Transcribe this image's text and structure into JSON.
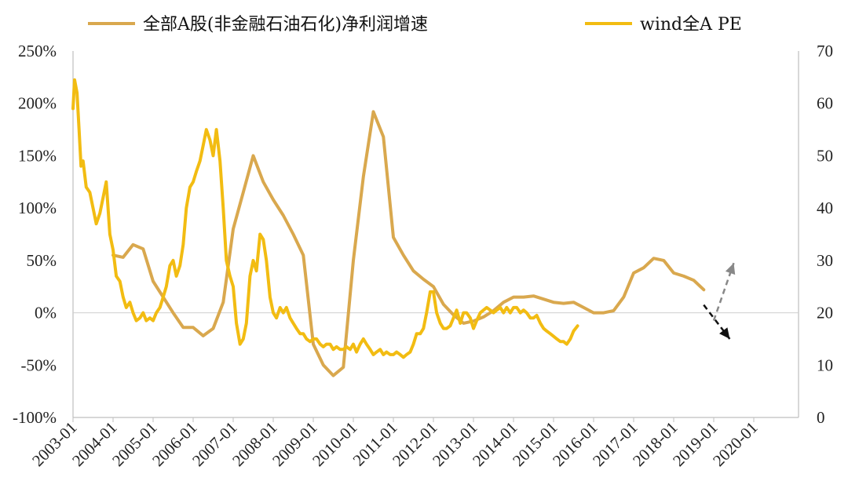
{
  "chart_data": {
    "type": "line",
    "legend": [
      {
        "name": "全部A股(非金融石油石化)净利润增速",
        "color": "#D9A84E"
      },
      {
        "name": "wind全A PE",
        "color": "#F2BC12"
      }
    ],
    "legend_position": "top",
    "grid": false,
    "x_ticks": [
      "2003-01",
      "2004-01",
      "2005-01",
      "2006-01",
      "2007-01",
      "2008-01",
      "2009-01",
      "2010-01",
      "2011-01",
      "2012-01",
      "2013-01",
      "2014-01",
      "2015-01",
      "2016-01",
      "2017-01",
      "2018-01",
      "2019-01",
      "2020-01"
    ],
    "y_left": {
      "min": -100,
      "max": 250,
      "ticks": [
        -100,
        -50,
        0,
        50,
        100,
        150,
        200,
        250
      ],
      "unit": "%"
    },
    "y_right": {
      "min": 0,
      "max": 70,
      "ticks": [
        0,
        10,
        20,
        30,
        40,
        50,
        60,
        70
      ]
    },
    "series": [
      {
        "name": "全部A股(非金融石油石化)净利润增速",
        "axis": "left",
        "color": "#D9A84E",
        "points": [
          [
            2004.0,
            55
          ],
          [
            2004.25,
            53
          ],
          [
            2004.5,
            65
          ],
          [
            2004.75,
            61
          ],
          [
            2005.0,
            30
          ],
          [
            2005.25,
            15
          ],
          [
            2005.5,
            0
          ],
          [
            2005.75,
            -14
          ],
          [
            2006.0,
            -14
          ],
          [
            2006.25,
            -22
          ],
          [
            2006.5,
            -15
          ],
          [
            2006.75,
            10
          ],
          [
            2007.0,
            80
          ],
          [
            2007.25,
            115
          ],
          [
            2007.5,
            150
          ],
          [
            2007.75,
            125
          ],
          [
            2008.0,
            108
          ],
          [
            2008.25,
            93
          ],
          [
            2008.5,
            75
          ],
          [
            2008.75,
            55
          ],
          [
            2009.0,
            -30
          ],
          [
            2009.25,
            -50
          ],
          [
            2009.5,
            -60
          ],
          [
            2009.75,
            -52
          ],
          [
            2010.0,
            50
          ],
          [
            2010.25,
            130
          ],
          [
            2010.5,
            192
          ],
          [
            2010.75,
            168
          ],
          [
            2011.0,
            72
          ],
          [
            2011.25,
            55
          ],
          [
            2011.5,
            40
          ],
          [
            2011.75,
            32
          ],
          [
            2012.0,
            25
          ],
          [
            2012.25,
            8
          ],
          [
            2012.5,
            -2
          ],
          [
            2012.75,
            -10
          ],
          [
            2013.0,
            -8
          ],
          [
            2013.25,
            -4
          ],
          [
            2013.5,
            2
          ],
          [
            2013.75,
            10
          ],
          [
            2014.0,
            15
          ],
          [
            2014.25,
            15
          ],
          [
            2014.5,
            16
          ],
          [
            2014.75,
            13
          ],
          [
            2015.0,
            10
          ],
          [
            2015.25,
            9
          ],
          [
            2015.5,
            10
          ],
          [
            2015.75,
            5
          ],
          [
            2016.0,
            0
          ],
          [
            2016.25,
            0
          ],
          [
            2016.5,
            2
          ],
          [
            2016.75,
            15
          ],
          [
            2017.0,
            38
          ],
          [
            2017.25,
            43
          ],
          [
            2017.5,
            52
          ],
          [
            2017.75,
            50
          ],
          [
            2018.0,
            38
          ],
          [
            2018.25,
            35
          ],
          [
            2018.5,
            31
          ],
          [
            2018.75,
            22
          ]
        ]
      },
      {
        "name": "wind全A PE",
        "axis": "right",
        "color": "#F2BC12",
        "points": [
          [
            2003.0,
            59
          ],
          [
            2003.04,
            64.5
          ],
          [
            2003.1,
            62
          ],
          [
            2003.15,
            55
          ],
          [
            2003.2,
            48
          ],
          [
            2003.25,
            49
          ],
          [
            2003.33,
            44
          ],
          [
            2003.42,
            43
          ],
          [
            2003.5,
            40
          ],
          [
            2003.58,
            37
          ],
          [
            2003.67,
            39
          ],
          [
            2003.75,
            42
          ],
          [
            2003.83,
            45
          ],
          [
            2003.92,
            35
          ],
          [
            2004.0,
            32
          ],
          [
            2004.08,
            27
          ],
          [
            2004.17,
            26
          ],
          [
            2004.25,
            23
          ],
          [
            2004.33,
            21
          ],
          [
            2004.42,
            22
          ],
          [
            2004.5,
            20
          ],
          [
            2004.58,
            18.5
          ],
          [
            2004.67,
            19
          ],
          [
            2004.75,
            20
          ],
          [
            2004.83,
            18.5
          ],
          [
            2004.92,
            19
          ],
          [
            2005.0,
            18.5
          ],
          [
            2005.08,
            20
          ],
          [
            2005.17,
            21
          ],
          [
            2005.25,
            23
          ],
          [
            2005.33,
            25
          ],
          [
            2005.42,
            29
          ],
          [
            2005.5,
            30
          ],
          [
            2005.58,
            27
          ],
          [
            2005.67,
            29
          ],
          [
            2005.75,
            33
          ],
          [
            2005.83,
            40
          ],
          [
            2005.92,
            44
          ],
          [
            2006.0,
            45
          ],
          [
            2006.08,
            47
          ],
          [
            2006.17,
            49
          ],
          [
            2006.25,
            52
          ],
          [
            2006.33,
            55
          ],
          [
            2006.42,
            53
          ],
          [
            2006.5,
            50
          ],
          [
            2006.58,
            55
          ],
          [
            2006.67,
            49
          ],
          [
            2006.75,
            40
          ],
          [
            2006.83,
            30
          ],
          [
            2006.92,
            27
          ],
          [
            2007.0,
            25
          ],
          [
            2007.08,
            18
          ],
          [
            2007.17,
            14
          ],
          [
            2007.25,
            15
          ],
          [
            2007.33,
            18
          ],
          [
            2007.42,
            27
          ],
          [
            2007.5,
            30
          ],
          [
            2007.58,
            28
          ],
          [
            2007.67,
            35
          ],
          [
            2007.75,
            34
          ],
          [
            2007.83,
            30
          ],
          [
            2007.92,
            23
          ],
          [
            2008.0,
            20
          ],
          [
            2008.08,
            19
          ],
          [
            2008.17,
            21
          ],
          [
            2008.25,
            20
          ],
          [
            2008.33,
            21
          ],
          [
            2008.42,
            19
          ],
          [
            2008.5,
            18
          ],
          [
            2008.58,
            17
          ],
          [
            2008.67,
            16
          ],
          [
            2008.75,
            16
          ],
          [
            2008.83,
            15
          ],
          [
            2008.92,
            14.5
          ],
          [
            2009.0,
            15
          ],
          [
            2009.08,
            15
          ],
          [
            2009.17,
            14
          ],
          [
            2009.25,
            13.5
          ],
          [
            2009.33,
            14
          ],
          [
            2009.42,
            14
          ],
          [
            2009.5,
            13
          ],
          [
            2009.58,
            13.5
          ],
          [
            2009.67,
            13
          ],
          [
            2009.75,
            13
          ],
          [
            2009.83,
            13.5
          ],
          [
            2009.92,
            13
          ],
          [
            2010.0,
            14
          ],
          [
            2010.08,
            12.5
          ],
          [
            2010.17,
            14
          ],
          [
            2010.25,
            15
          ],
          [
            2010.33,
            14
          ],
          [
            2010.42,
            13
          ],
          [
            2010.5,
            12
          ],
          [
            2010.58,
            12.5
          ],
          [
            2010.67,
            13
          ],
          [
            2010.75,
            12
          ],
          [
            2010.83,
            12.5
          ],
          [
            2010.92,
            12
          ],
          [
            2011.0,
            12
          ],
          [
            2011.08,
            12.5
          ],
          [
            2011.17,
            12
          ],
          [
            2011.25,
            11.5
          ],
          [
            2011.33,
            12
          ],
          [
            2011.42,
            12.5
          ],
          [
            2011.5,
            14
          ],
          [
            2011.58,
            16
          ],
          [
            2011.67,
            16
          ],
          [
            2011.75,
            17
          ],
          [
            2011.83,
            20
          ],
          [
            2011.92,
            24
          ],
          [
            2012.0,
            24
          ],
          [
            2012.08,
            20
          ],
          [
            2012.17,
            18
          ],
          [
            2012.25,
            17
          ],
          [
            2012.33,
            17
          ],
          [
            2012.42,
            17.5
          ],
          [
            2012.5,
            19
          ],
          [
            2012.58,
            20.5
          ],
          [
            2012.67,
            18
          ],
          [
            2012.75,
            20
          ],
          [
            2012.83,
            20
          ],
          [
            2012.92,
            19
          ],
          [
            2013.0,
            17
          ],
          [
            2013.08,
            18.5
          ],
          [
            2013.17,
            20
          ],
          [
            2013.25,
            20.5
          ],
          [
            2013.33,
            21
          ],
          [
            2013.42,
            20.5
          ],
          [
            2013.5,
            20
          ],
          [
            2013.58,
            20.5
          ],
          [
            2013.67,
            21
          ],
          [
            2013.75,
            20
          ],
          [
            2013.83,
            21
          ],
          [
            2013.92,
            20
          ],
          [
            2014.0,
            21
          ],
          [
            2014.08,
            21
          ],
          [
            2014.17,
            20
          ],
          [
            2014.25,
            20.5
          ],
          [
            2014.33,
            20
          ],
          [
            2014.42,
            19
          ],
          [
            2014.5,
            19
          ],
          [
            2014.58,
            19.5
          ],
          [
            2014.67,
            18
          ],
          [
            2014.75,
            17
          ],
          [
            2014.83,
            16.5
          ],
          [
            2014.92,
            16
          ],
          [
            2015.0,
            15.5
          ],
          [
            2015.08,
            15
          ],
          [
            2015.17,
            14.5
          ],
          [
            2015.25,
            14.5
          ],
          [
            2015.33,
            14
          ],
          [
            2015.42,
            15
          ],
          [
            2015.5,
            16.5
          ],
          [
            2015.6,
            17.5
          ]
        ]
      }
    ],
    "annotations": [
      {
        "type": "arrow",
        "style": "dashed",
        "color": "#111111",
        "from": [
          2018.75,
          21.5
        ],
        "to": [
          2019.4,
          15
        ]
      },
      {
        "type": "arrow",
        "style": "dashed",
        "color": "#888888",
        "from": [
          2019.0,
          18.5
        ],
        "to": [
          2019.5,
          29.5
        ]
      }
    ]
  }
}
